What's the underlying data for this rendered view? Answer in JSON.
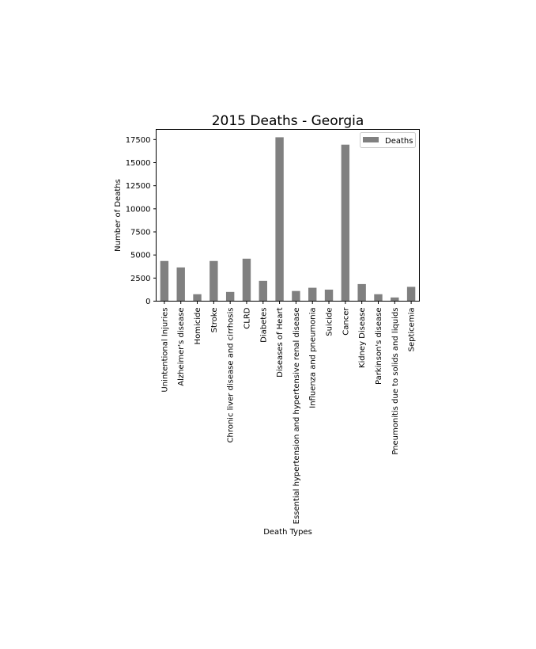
{
  "chart_data": {
    "type": "bar",
    "title": "2015 Deaths - Georgia",
    "xlabel": "Death Types",
    "ylabel": "Number of Deaths",
    "categories": [
      "Unintentional Injuries",
      "Alzheimer's disease",
      "Homicide",
      "Stroke",
      "Chronic liver disease and cirrhosis",
      "CLRD",
      "Diabetes",
      "Diseases of Heart",
      "Essential hypertension and hypertensive renal disease",
      "Influenza and pneumonia",
      "Suicide",
      "Cancer",
      "Kidney Disease",
      "Parkinson's disease",
      "Pneumonitis due to solids and liquids",
      "Septicemia"
    ],
    "series": [
      {
        "name": "Deaths",
        "color": "#808080",
        "values": [
          4350,
          3650,
          750,
          4350,
          1000,
          4600,
          2200,
          17750,
          1100,
          1450,
          1250,
          16950,
          1850,
          750,
          400,
          1550
        ]
      }
    ],
    "ylim": [
      0,
      18600
    ],
    "yticks": [
      0,
      2500,
      5000,
      7500,
      10000,
      12500,
      15000,
      17500
    ],
    "grid": false,
    "legend": "top-right"
  }
}
